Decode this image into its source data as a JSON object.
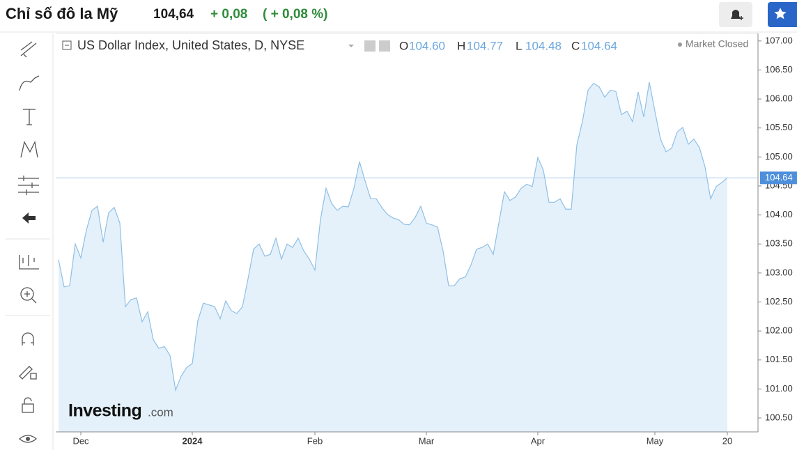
{
  "header": {
    "title": "Chỉ số đô la Mỹ",
    "price": "104,64",
    "change": "+ 0,08",
    "change_percent": "( + 0,08 %)"
  },
  "chart_info": {
    "symbol": "US Dollar Index, United States, D, NYSE",
    "ohlc": [
      {
        "key": "O",
        "value": "104.60"
      },
      {
        "key": "H",
        "value": "104.77"
      },
      {
        "key": "L",
        "value": "104.48"
      },
      {
        "key": "C",
        "value": "104.64"
      }
    ],
    "status": "Market Closed",
    "logo": "Investing",
    "logo_suffix": ".com"
  },
  "chart_data": {
    "type": "area",
    "color": "#8fbfe6",
    "fill": "#e4f1fa",
    "categories": [
      null,
      null,
      null,
      null,
      "Dec",
      null,
      null,
      null,
      null,
      null,
      null,
      null,
      null,
      null,
      null,
      null,
      null,
      null,
      null,
      null,
      null,
      null,
      null,
      null,
      "2024",
      null,
      null,
      null,
      null,
      null,
      null,
      null,
      null,
      null,
      null,
      null,
      null,
      null,
      null,
      null,
      null,
      null,
      null,
      null,
      null,
      null,
      "Feb",
      null,
      null,
      null,
      null,
      null,
      null,
      null,
      null,
      null,
      null,
      null,
      null,
      null,
      null,
      null,
      null,
      null,
      null,
      null,
      "Mar",
      null,
      null,
      null,
      null,
      null,
      null,
      null,
      null,
      null,
      null,
      null,
      null,
      null,
      null,
      null,
      null,
      null,
      null,
      null,
      "Apr",
      null,
      null,
      null,
      null,
      null,
      null,
      null,
      null,
      null,
      null,
      null,
      null,
      null,
      null,
      null,
      null,
      null,
      null,
      null,
      null,
      "May",
      null,
      null,
      null,
      null,
      null,
      null,
      null,
      null,
      null,
      null,
      null,
      null,
      "20"
    ],
    "values": [
      103.23,
      102.76,
      102.78,
      103.5,
      103.26,
      103.74,
      104.08,
      104.15,
      103.53,
      104.04,
      104.13,
      103.86,
      102.42,
      102.54,
      102.57,
      102.16,
      102.33,
      101.85,
      101.7,
      101.73,
      101.58,
      100.98,
      101.22,
      101.37,
      101.44,
      102.18,
      102.48,
      102.45,
      102.42,
      102.21,
      102.52,
      102.35,
      102.3,
      102.42,
      102.9,
      103.41,
      103.5,
      103.29,
      103.32,
      103.6,
      103.24,
      103.5,
      103.44,
      103.6,
      103.38,
      103.24,
      103.05,
      103.92,
      104.46,
      104.2,
      104.08,
      104.15,
      104.14,
      104.46,
      104.92,
      104.59,
      104.28,
      104.28,
      104.13,
      104.01,
      103.95,
      103.92,
      103.84,
      103.83,
      103.96,
      104.15,
      103.86,
      103.83,
      103.79,
      103.38,
      102.78,
      102.78,
      102.9,
      102.93,
      103.14,
      103.41,
      103.44,
      103.5,
      103.32,
      103.86,
      104.4,
      104.25,
      104.31,
      104.46,
      104.53,
      104.49,
      104.99,
      104.77,
      104.22,
      104.22,
      104.28,
      104.1,
      104.1,
      105.21,
      105.61,
      106.15,
      106.27,
      106.21,
      106.03,
      106.15,
      106.13,
      105.73,
      105.79,
      105.61,
      106.12,
      105.69,
      106.29,
      105.79,
      105.31,
      105.09,
      105.15,
      105.43,
      105.51,
      105.22,
      105.31,
      105.16,
      104.83,
      104.28,
      104.49,
      104.56,
      104.64
    ],
    "price_line": 104.64,
    "ylim": [
      100.26,
      107.13
    ],
    "yticks": [
      {
        "value": 100.5,
        "label": "100.50"
      },
      {
        "value": 101,
        "label": "101.00"
      },
      {
        "value": 101.5,
        "label": "101.50"
      },
      {
        "value": 102,
        "label": "102.00"
      },
      {
        "value": 102.5,
        "label": "102.50"
      },
      {
        "value": 103,
        "label": "103.00"
      },
      {
        "value": 103.5,
        "label": "103.50"
      },
      {
        "value": 104,
        "label": "104.00"
      },
      {
        "value": 104.5,
        "label": "104.50"
      },
      {
        "value": 105,
        "label": "105.00"
      },
      {
        "value": 105.5,
        "label": "105.50"
      },
      {
        "value": 106,
        "label": "106.00"
      },
      {
        "value": 106.5,
        "label": "106.50"
      },
      {
        "value": 107,
        "label": "107.00"
      }
    ],
    "grid": false
  }
}
